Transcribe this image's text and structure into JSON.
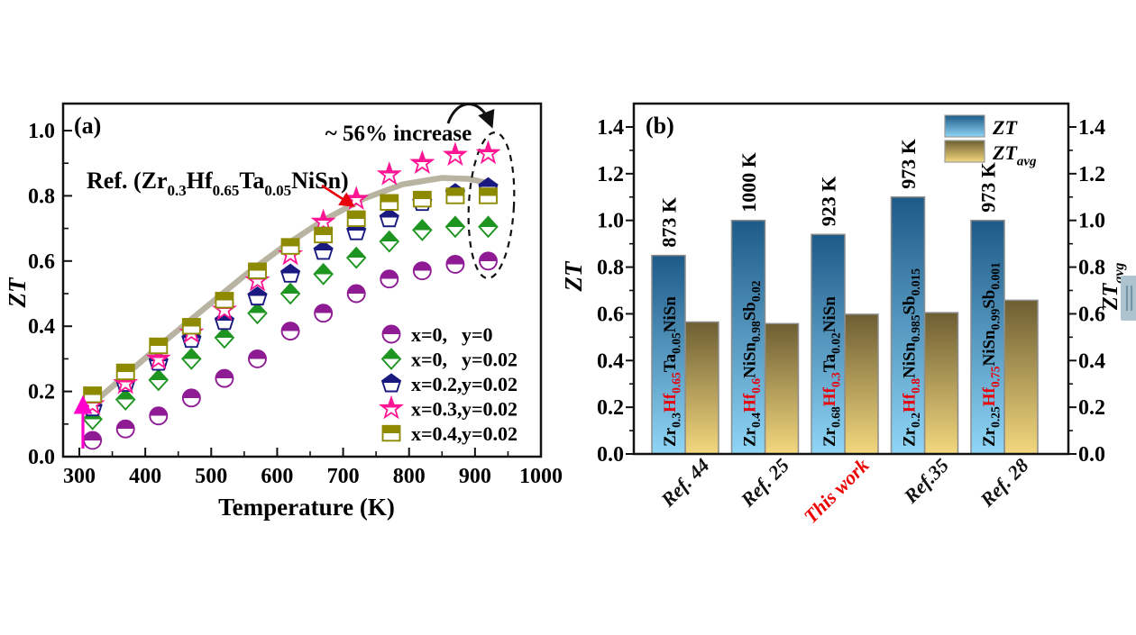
{
  "figure": {
    "background": "#ffffff",
    "colors": {
      "frame": "#111111",
      "red_accent": "#e8000b",
      "magenta_accent": "#ff00cc",
      "reference_curve": "#b8b4a1",
      "bar_stroke": "#8c8c8c"
    }
  },
  "chart_data": [
    {
      "id": "panel-a",
      "type": "scatter",
      "panel_label": "(a)",
      "xlabel": "Temperature (K)",
      "ylabel": "ZT",
      "xlim": [
        276,
        1000
      ],
      "ylim": [
        0,
        1.083
      ],
      "xticks": [
        "300",
        "400",
        "500",
        "600",
        "700",
        "800",
        "900",
        "1000"
      ],
      "yticks": [
        "0.0",
        "0.2",
        "0.4",
        "0.6",
        "0.8",
        "1.0"
      ],
      "grid": false,
      "legend_position": "lower right",
      "x": [
        320,
        370,
        420,
        470,
        520,
        570,
        620,
        670,
        720,
        770,
        820,
        870,
        920
      ],
      "series": [
        {
          "label_x": "x=0,",
          "label_y": "y=0",
          "marker": "circle",
          "color": "#8e1b94",
          "values": [
            0.05,
            0.085,
            0.125,
            0.18,
            0.24,
            0.3,
            0.385,
            0.44,
            0.5,
            0.545,
            0.57,
            0.59,
            0.6
          ]
        },
        {
          "label_x": "x=0,",
          "label_y": "y=0.02",
          "marker": "diamond",
          "color": "#1e9520",
          "values": [
            0.115,
            0.175,
            0.235,
            0.3,
            0.365,
            0.44,
            0.5,
            0.56,
            0.61,
            0.66,
            0.695,
            0.705,
            0.705
          ]
        },
        {
          "label_x": "x=0.2,",
          "label_y": "y=0.02",
          "marker": "pentagon",
          "color": "#191980",
          "values": [
            0.15,
            0.225,
            0.29,
            0.36,
            0.415,
            0.49,
            0.56,
            0.63,
            0.69,
            0.73,
            0.78,
            0.807,
            0.825
          ]
        },
        {
          "label_x": "x=0.3,",
          "label_y": "y=0.02",
          "marker": "star",
          "color": "#ff1493",
          "values": [
            0.16,
            0.225,
            0.3,
            0.38,
            0.45,
            0.54,
            0.62,
            0.72,
            0.79,
            0.865,
            0.9,
            0.925,
            0.93
          ]
        },
        {
          "label_x": "x=0.4,",
          "label_y": "y=0.02",
          "marker": "square",
          "color": "#8e8a00",
          "values": [
            0.19,
            0.26,
            0.34,
            0.4,
            0.48,
            0.57,
            0.645,
            0.68,
            0.73,
            0.78,
            0.79,
            0.8,
            0.8
          ]
        }
      ],
      "reference_line": {
        "color": "#b8b4a1",
        "points": [
          [
            313,
            0.15
          ],
          [
            370,
            0.25
          ],
          [
            430,
            0.355
          ],
          [
            490,
            0.455
          ],
          [
            550,
            0.555
          ],
          [
            610,
            0.645
          ],
          [
            670,
            0.725
          ],
          [
            730,
            0.79
          ],
          [
            790,
            0.835
          ],
          [
            850,
            0.855
          ],
          [
            890,
            0.852
          ],
          [
            925,
            0.837
          ]
        ]
      },
      "annotations": {
        "increase_label": "~ 56% increase",
        "ref_label_segments": [
          {
            "t": "Ref. (Zr"
          },
          {
            "t": "0.3",
            "sub": 1
          },
          {
            "t": "Hf"
          },
          {
            "t": "0.65",
            "sub": 1
          },
          {
            "t": "Ta"
          },
          {
            "t": "0.05",
            "sub": 1
          },
          {
            "t": "NiSn)"
          }
        ]
      }
    },
    {
      "id": "panel-b",
      "type": "bar",
      "panel_label": "(b)",
      "ylabel_left": "ZT",
      "ylabel_right_main": "ZT",
      "ylabel_right_sub": "avg",
      "ylim": [
        0,
        1.5
      ],
      "yticks": [
        "0.0",
        "0.2",
        "0.4",
        "0.6",
        "0.8",
        "1.0",
        "1.2",
        "1.4"
      ],
      "legend_position": "upper right",
      "categories": [
        {
          "label": "Ref. 44",
          "color": "#111111"
        },
        {
          "label": "Ref. 25",
          "color": "#111111"
        },
        {
          "label": "This work",
          "color": "#ee0000"
        },
        {
          "label": "Ref.35",
          "color": "#111111"
        },
        {
          "label": "Ref. 28",
          "color": "#111111"
        }
      ],
      "series": [
        {
          "name": "ZT",
          "values": [
            0.85,
            1.0,
            0.94,
            1.1,
            1.0
          ],
          "gradient_top": "#1d5a88",
          "gradient_bottom": "#8fd6f6"
        },
        {
          "name_main": "ZT",
          "name_sub": "avg",
          "values": [
            0.565,
            0.558,
            0.598,
            0.605,
            0.658
          ],
          "gradient_top": "#6d5e33",
          "gradient_bottom": "#f3d87e"
        }
      ],
      "bar_annotations": [
        {
          "temp": "873 K",
          "composition": [
            {
              "t": "Zr"
            },
            {
              "t": "0.3",
              "sub": 1
            },
            {
              "t": "Hf",
              "red": 1
            },
            {
              "t": "0.65",
              "sub": 1,
              "red": 1
            },
            {
              "t": "Ta"
            },
            {
              "t": "0.05",
              "sub": 1
            },
            {
              "t": "NiSn"
            }
          ]
        },
        {
          "temp": "1000 K",
          "composition": [
            {
              "t": "Zr"
            },
            {
              "t": "0.4",
              "sub": 1
            },
            {
              "t": "Hf",
              "red": 1
            },
            {
              "t": "0.6",
              "sub": 1,
              "red": 1
            },
            {
              "t": "NiSn"
            },
            {
              "t": "0.98",
              "sub": 1
            },
            {
              "t": "Sb"
            },
            {
              "t": "0.02",
              "sub": 1
            }
          ]
        },
        {
          "temp": "923 K",
          "composition": [
            {
              "t": "Zr"
            },
            {
              "t": "0.68",
              "sub": 1
            },
            {
              "t": "Hf",
              "red": 1
            },
            {
              "t": "0.3",
              "sub": 1,
              "red": 1
            },
            {
              "t": "Ta"
            },
            {
              "t": "0.02",
              "sub": 1
            },
            {
              "t": "NiSn"
            }
          ]
        },
        {
          "temp": "973 K",
          "composition": [
            {
              "t": "Zr"
            },
            {
              "t": "0.2",
              "sub": 1
            },
            {
              "t": "Hf",
              "red": 1
            },
            {
              "t": "0.8",
              "sub": 1,
              "red": 1
            },
            {
              "t": "NiSn"
            },
            {
              "t": "0.985",
              "sub": 1
            },
            {
              "t": "Sb"
            },
            {
              "t": "0.015",
              "sub": 1
            }
          ]
        },
        {
          "temp": "973 K",
          "composition": [
            {
              "t": "Zr"
            },
            {
              "t": "0.25",
              "sub": 1
            },
            {
              "t": "Hf",
              "red": 1
            },
            {
              "t": "0.75",
              "sub": 1,
              "red": 1
            },
            {
              "t": "NiSn"
            },
            {
              "t": "0.99",
              "sub": 1
            },
            {
              "t": "Sb"
            },
            {
              "t": "0.001",
              "sub": 1
            }
          ]
        }
      ]
    }
  ],
  "side_widget": {
    "fill": "#adc4cf",
    "line_color": "#7395a5"
  }
}
